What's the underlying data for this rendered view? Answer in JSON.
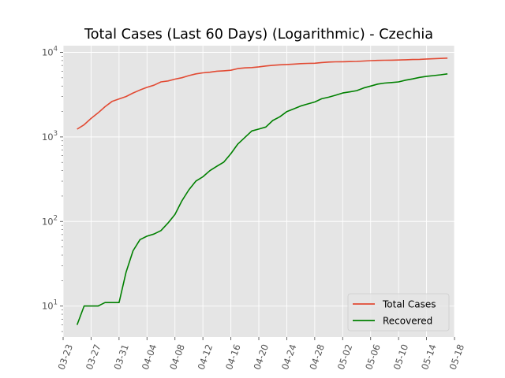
{
  "chart_data": {
    "type": "line",
    "title": "Total Cases (Last 60 Days) (Logarithmic) - Czechia",
    "xlabel": "",
    "ylabel": "",
    "y_scale": "log",
    "ylim": [
      4.3,
      12000
    ],
    "xlim": [
      "2020-03-23",
      "2020-05-18"
    ],
    "grid": true,
    "legend_position": "lower-right",
    "x_ticks": [
      "03-23",
      "03-27",
      "03-31",
      "04-04",
      "04-08",
      "04-12",
      "04-16",
      "04-20",
      "04-24",
      "04-28",
      "05-02",
      "05-06",
      "05-10",
      "05-14",
      "05-18"
    ],
    "y_ticks": [
      {
        "value": 10,
        "base": "10",
        "exp": "1"
      },
      {
        "value": 100,
        "base": "10",
        "exp": "2"
      },
      {
        "value": 1000,
        "base": "10",
        "exp": "3"
      },
      {
        "value": 10000,
        "base": "10",
        "exp": "4"
      }
    ],
    "x": [
      "2020-03-25",
      "2020-03-26",
      "2020-03-27",
      "2020-03-28",
      "2020-03-29",
      "2020-03-30",
      "2020-03-31",
      "2020-04-01",
      "2020-04-02",
      "2020-04-03",
      "2020-04-04",
      "2020-04-05",
      "2020-04-06",
      "2020-04-07",
      "2020-04-08",
      "2020-04-09",
      "2020-04-10",
      "2020-04-11",
      "2020-04-12",
      "2020-04-13",
      "2020-04-14",
      "2020-04-15",
      "2020-04-16",
      "2020-04-17",
      "2020-04-18",
      "2020-04-19",
      "2020-04-20",
      "2020-04-21",
      "2020-04-22",
      "2020-04-23",
      "2020-04-24",
      "2020-04-25",
      "2020-04-26",
      "2020-04-27",
      "2020-04-28",
      "2020-04-29",
      "2020-04-30",
      "2020-05-01",
      "2020-05-02",
      "2020-05-03",
      "2020-05-04",
      "2020-05-05",
      "2020-05-06",
      "2020-05-07",
      "2020-05-08",
      "2020-05-09",
      "2020-05-10",
      "2020-05-11",
      "2020-05-12",
      "2020-05-13",
      "2020-05-14",
      "2020-05-15"
    ],
    "series": [
      {
        "name": "Total Cases",
        "color": "#E24A33",
        "values": [
          1236,
          1394,
          1654,
          1925,
          2279,
          2631,
          2817,
          3001,
          3308,
          3589,
          3858,
          4091,
          4472,
          4587,
          4822,
          5017,
          5312,
          5569,
          5732,
          5831,
          5991,
          6059,
          6141,
          6433,
          6549,
          6606,
          6746,
          6900,
          7033,
          7132,
          7187,
          7273,
          7352,
          7404,
          7445,
          7579,
          7682,
          7737,
          7755,
          7781,
          7819,
          7896,
          7979,
          8031,
          8077,
          8095,
          8123,
          8176,
          8221,
          8269,
          8351,
          8406
        ]
      },
      {
        "name": "Recovered",
        "color": "#008000",
        "values": [
          6,
          10,
          10,
          10,
          11,
          11,
          11,
          25,
          45,
          61,
          67,
          71,
          78,
          96,
          121,
          176,
          237,
          301,
          338,
          399,
          450,
          504,
          634,
          824,
          985,
          1177,
          1240,
          1311,
          1564,
          1730,
          1991,
          2150,
          2321,
          2455,
          2590,
          2826,
          2950,
          3116,
          3309,
          3407,
          3527,
          3791,
          3998,
          4217,
          4335,
          4401,
          4475,
          4694,
          4853,
          5058,
          5214,
          5318
        ]
      }
    ],
    "x_extension_dates": [
      "2020-05-16",
      "2020-05-17"
    ],
    "x_extension_values": {
      "Total Cases": [
        8475,
        8550
      ],
      "Recovered": [
        5430,
        5570
      ]
    }
  }
}
